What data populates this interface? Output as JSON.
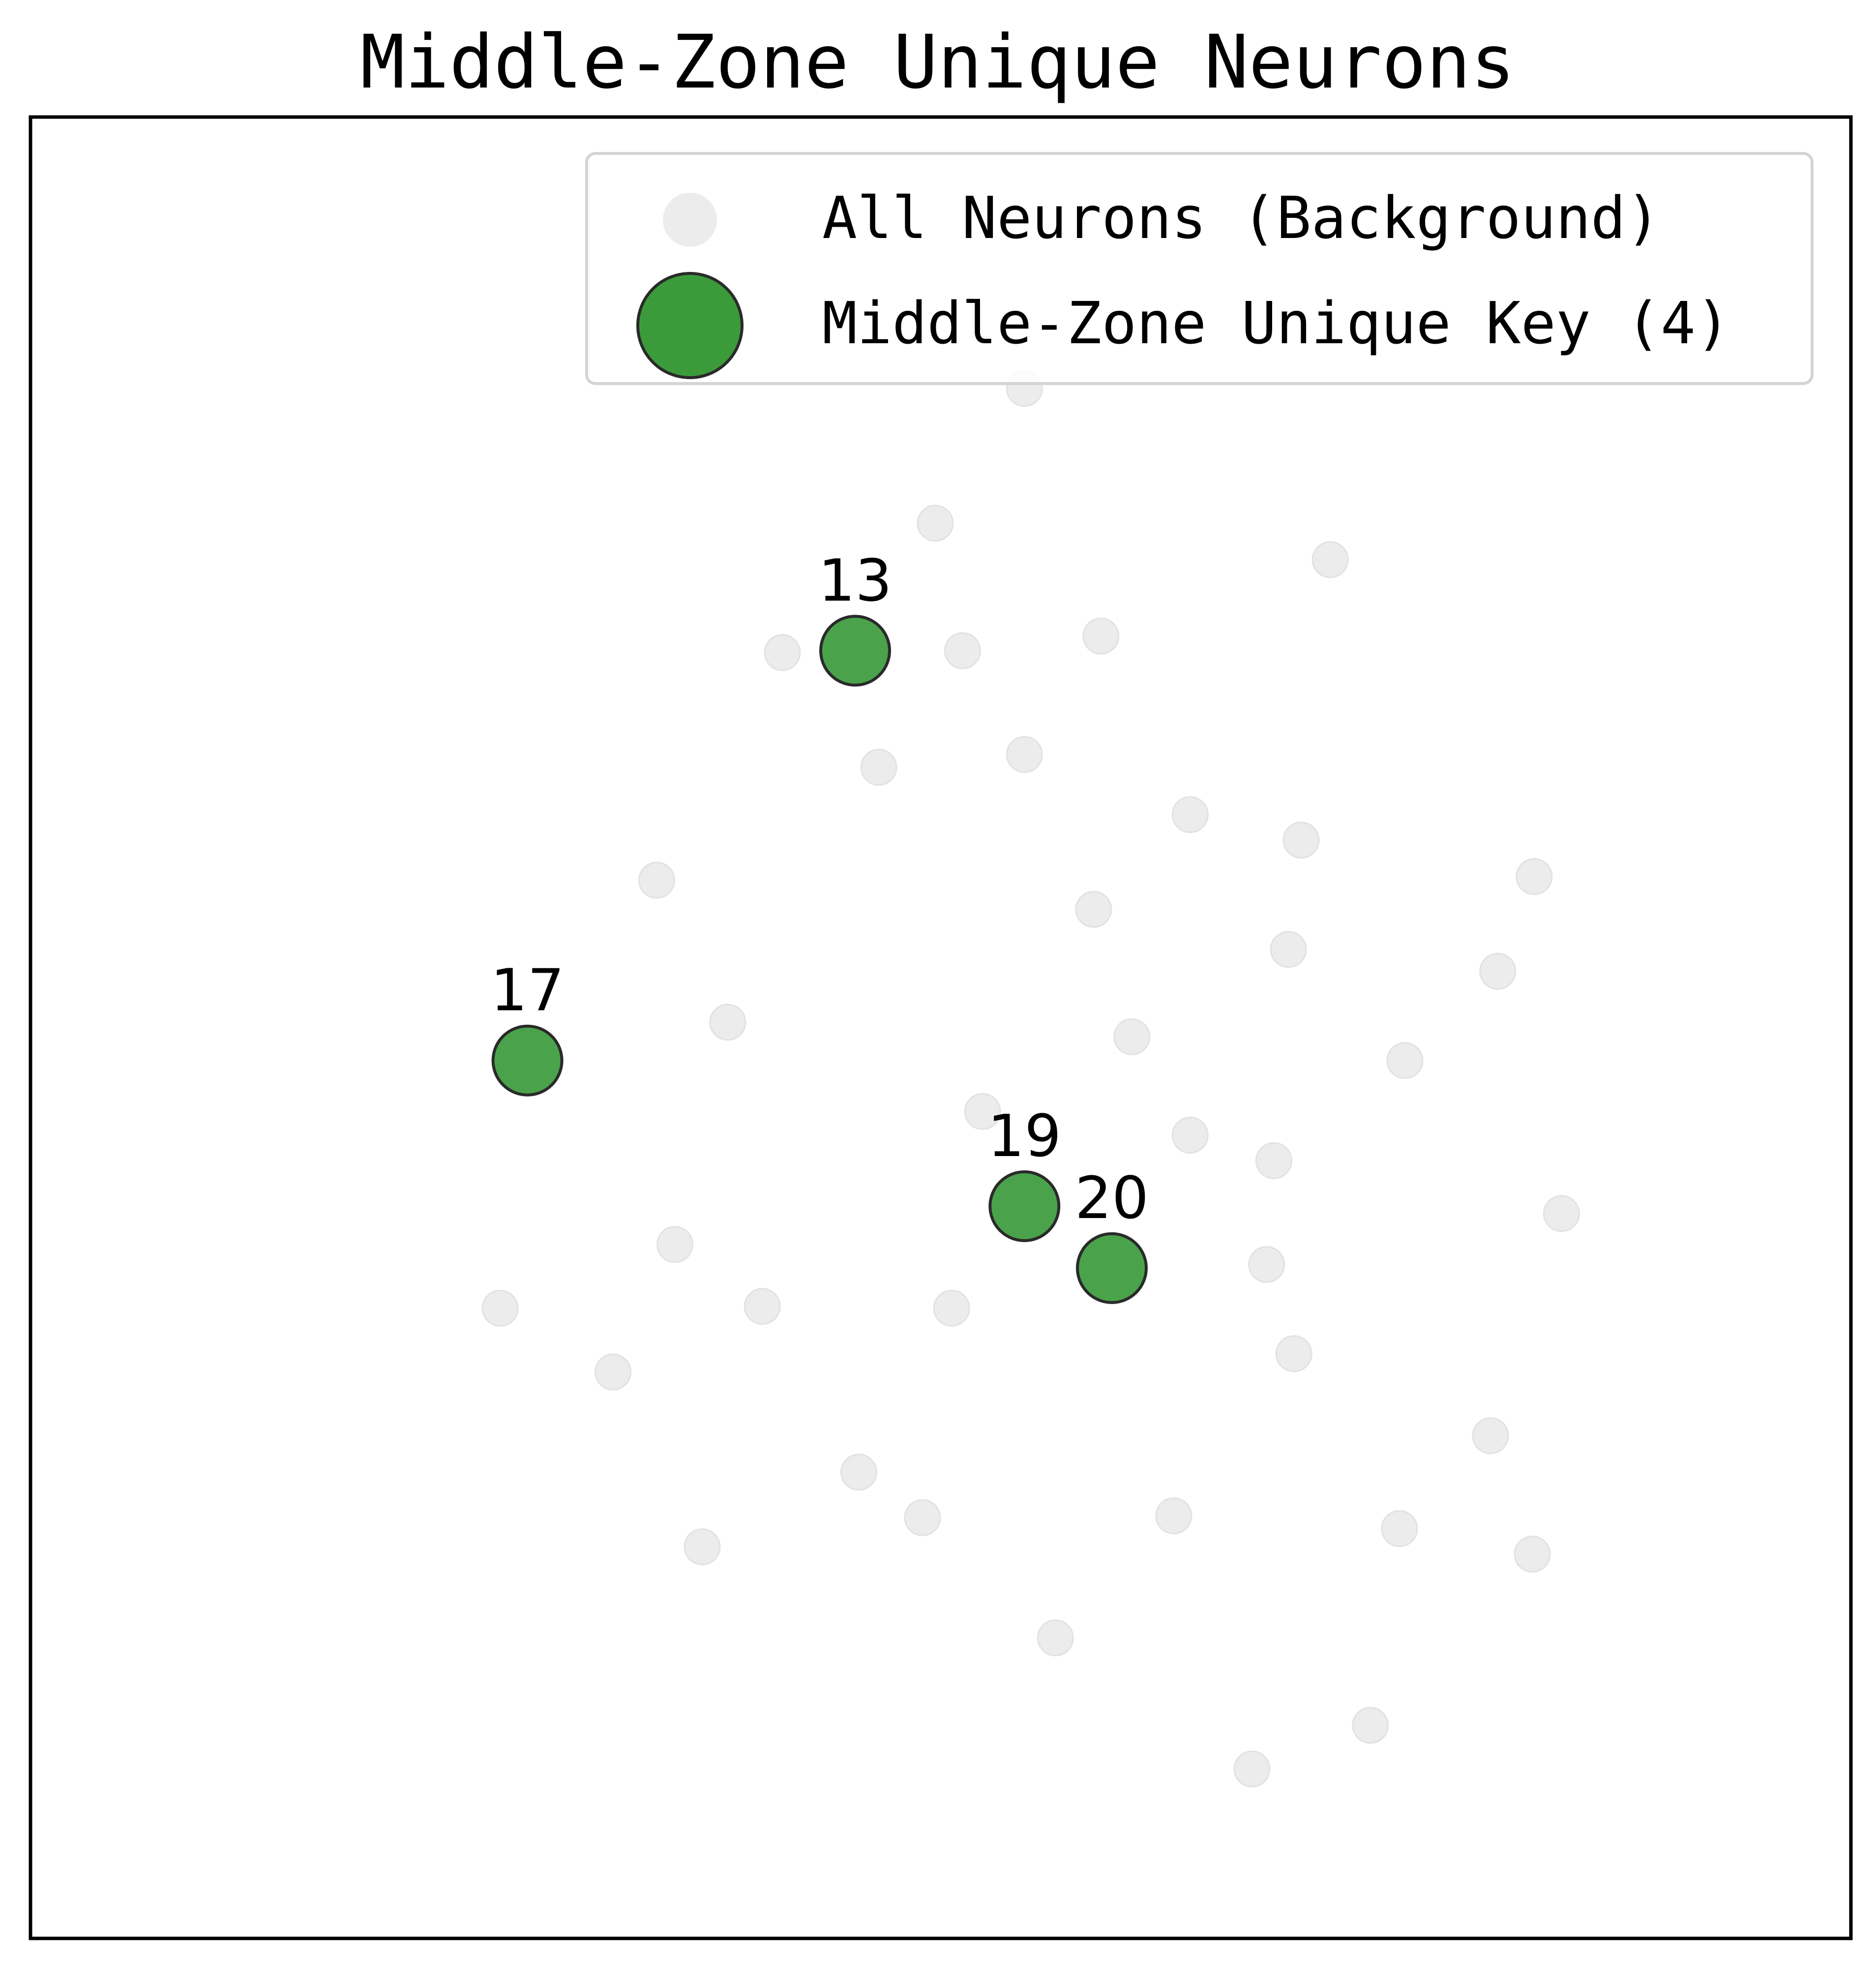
{
  "chart_data": {
    "type": "scatter",
    "title": "Middle-Zone Unique Neurons",
    "xlabel": "",
    "ylabel": "",
    "xlim": [
      0,
      1
    ],
    "ylim": [
      0,
      1
    ],
    "grid": false,
    "ticks_visible": false,
    "legend_position": "top-right",
    "series": [
      {
        "name": "All Neurons (Background)",
        "color": "#ececec",
        "marker": "small-circle",
        "points": [
          {
            "x": 0.546,
            "y": 0.851
          },
          {
            "x": 0.497,
            "y": 0.777
          },
          {
            "x": 0.714,
            "y": 0.757
          },
          {
            "x": 0.413,
            "y": 0.706
          },
          {
            "x": 0.512,
            "y": 0.707
          },
          {
            "x": 0.588,
            "y": 0.715
          },
          {
            "x": 0.466,
            "y": 0.643
          },
          {
            "x": 0.546,
            "y": 0.65
          },
          {
            "x": 0.637,
            "y": 0.617
          },
          {
            "x": 0.698,
            "y": 0.603
          },
          {
            "x": 0.344,
            "y": 0.581
          },
          {
            "x": 0.826,
            "y": 0.583
          },
          {
            "x": 0.584,
            "y": 0.565
          },
          {
            "x": 0.691,
            "y": 0.543
          },
          {
            "x": 0.806,
            "y": 0.531
          },
          {
            "x": 0.383,
            "y": 0.503
          },
          {
            "x": 0.605,
            "y": 0.495
          },
          {
            "x": 0.755,
            "y": 0.482
          },
          {
            "x": 0.523,
            "y": 0.454
          },
          {
            "x": 0.637,
            "y": 0.441
          },
          {
            "x": 0.683,
            "y": 0.427
          },
          {
            "x": 0.841,
            "y": 0.398
          },
          {
            "x": 0.354,
            "y": 0.381
          },
          {
            "x": 0.679,
            "y": 0.37
          },
          {
            "x": 0.258,
            "y": 0.346
          },
          {
            "x": 0.402,
            "y": 0.347
          },
          {
            "x": 0.506,
            "y": 0.346
          },
          {
            "x": 0.32,
            "y": 0.311
          },
          {
            "x": 0.694,
            "y": 0.321
          },
          {
            "x": 0.802,
            "y": 0.276
          },
          {
            "x": 0.455,
            "y": 0.256
          },
          {
            "x": 0.49,
            "y": 0.231
          },
          {
            "x": 0.628,
            "y": 0.232
          },
          {
            "x": 0.752,
            "y": 0.225
          },
          {
            "x": 0.825,
            "y": 0.211
          },
          {
            "x": 0.369,
            "y": 0.215
          },
          {
            "x": 0.563,
            "y": 0.165
          },
          {
            "x": 0.736,
            "y": 0.117
          },
          {
            "x": 0.671,
            "y": 0.093
          }
        ]
      },
      {
        "name": "Middle-Zone Unique Key (4)",
        "color": "#3b9b3b",
        "edge_color": "#2a2a2a",
        "marker": "large-circle",
        "points": [
          {
            "x": 0.453,
            "y": 0.707,
            "label": "13"
          },
          {
            "x": 0.273,
            "y": 0.482,
            "label": "17"
          },
          {
            "x": 0.546,
            "y": 0.402,
            "label": "19"
          },
          {
            "x": 0.594,
            "y": 0.368,
            "label": "20"
          }
        ]
      }
    ]
  }
}
